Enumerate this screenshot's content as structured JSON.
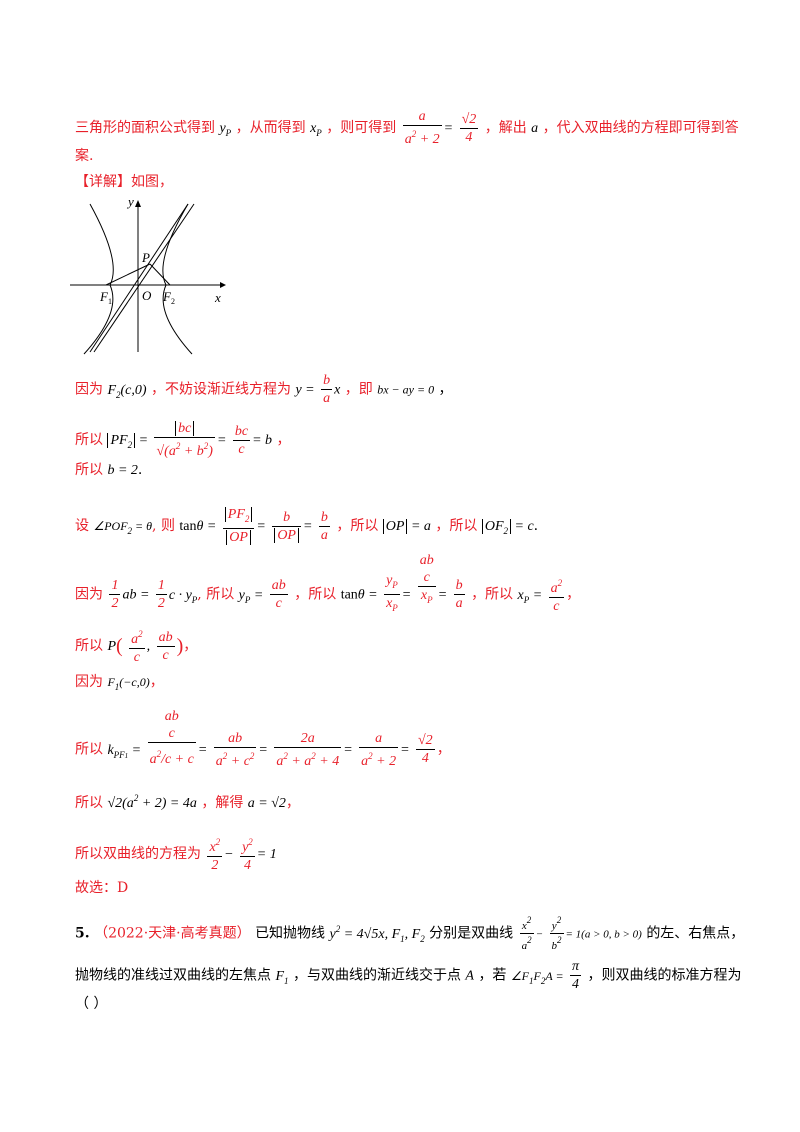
{
  "lines": {
    "l1a": "三角形的面积公式得到",
    "l1b": "，从而得到",
    "l1c": "，则可得到",
    "l1d": "，解出",
    "l1e": "，代入双曲线的方程即可得到答",
    "l2": "案.",
    "detail": "【详解】如图，",
    "l4a": "因为",
    "l4b": "，不妨设渐近线方程为",
    "l4c": "，即",
    "l5a": "所以",
    "l6a": "所以",
    "l7a": "设",
    "l7b": "则",
    "l7c": "，所以",
    "l7d": "，所以",
    "l8a": "因为",
    "l8b": "所以",
    "l8c": "，所以",
    "l8d": "，所以",
    "l9a": "所以",
    "l10a": "因为",
    "l11a": "所以",
    "l12a": "所以",
    "l12b": "，解得",
    "l13a": "所以双曲线的方程为",
    "l14": "故选：D",
    "q5num": "5.",
    "q5src": "（2022·天津·高考真题）",
    "q5a": "已知抛物线",
    "q5b": "分别是双曲线",
    "q5c": "的左、右焦点，",
    "q5d": "抛物线的准线过双曲线的左焦点",
    "q5e": "，与双曲线的渐近线交于点",
    "q5f": "，若",
    "q5g": "，则双曲线的标准方程为",
    "q5h": "（    ）"
  },
  "graph": {
    "labels": {
      "y": "y",
      "x": "x",
      "P": "P",
      "O": "O",
      "F1": "F",
      "F2": "F",
      "sub1": "1",
      "sub2": "2"
    }
  }
}
